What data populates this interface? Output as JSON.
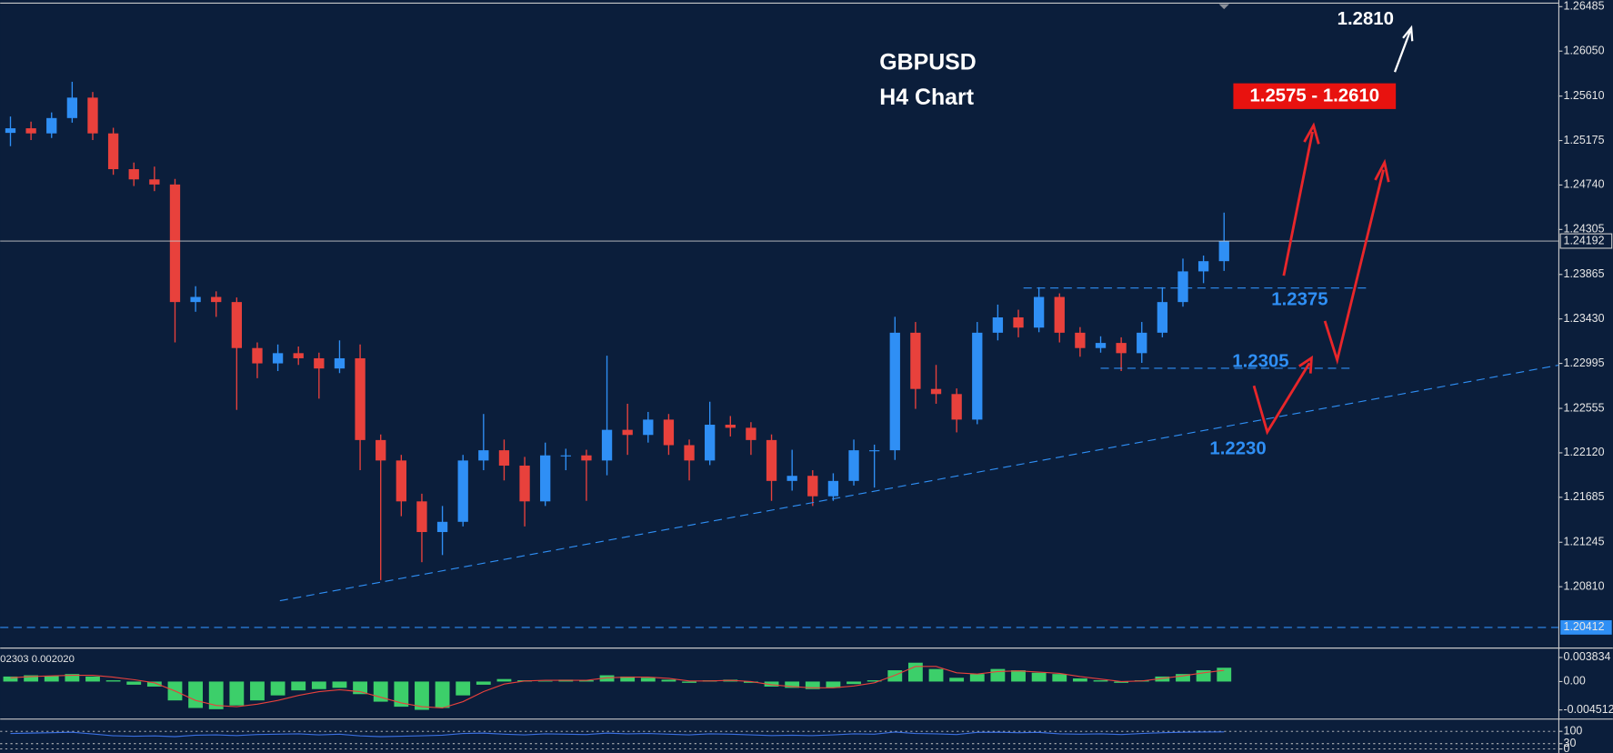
{
  "chart_data": [
    {
      "type": "candlestick",
      "title": "GBPUSD",
      "subtitle": "H4 Chart",
      "ohlc": [
        [
          1.2525,
          1.2541,
          1.2512,
          1.25295
        ],
        [
          1.25295,
          1.2536,
          1.2518,
          1.25245
        ],
        [
          1.25245,
          1.2545,
          1.252,
          1.25395
        ],
        [
          1.25395,
          1.2575,
          1.2535,
          1.25595
        ],
        [
          1.25595,
          1.2565,
          1.2518,
          1.25245
        ],
        [
          1.25245,
          1.253,
          1.2484,
          1.24895
        ],
        [
          1.24895,
          1.2496,
          1.2473,
          1.24795
        ],
        [
          1.24795,
          1.2492,
          1.2468,
          1.24745
        ],
        [
          1.24745,
          1.248,
          1.232,
          1.23595
        ],
        [
          1.23595,
          1.2375,
          1.235,
          1.23645
        ],
        [
          1.23645,
          1.237,
          1.2345,
          1.23595
        ],
        [
          1.23595,
          1.2364,
          1.2254,
          1.23145
        ],
        [
          1.23145,
          1.232,
          1.2285,
          1.22995
        ],
        [
          1.22995,
          1.2318,
          1.2292,
          1.23095
        ],
        [
          1.23095,
          1.2316,
          1.2298,
          1.23045
        ],
        [
          1.23045,
          1.231,
          1.2265,
          1.22945
        ],
        [
          1.22945,
          1.2322,
          1.229,
          1.23045
        ],
        [
          1.23045,
          1.2318,
          1.2195,
          1.22245
        ],
        [
          1.22245,
          1.223,
          1.20875,
          1.22045
        ],
        [
          1.22045,
          1.221,
          1.215,
          1.21645
        ],
        [
          1.21645,
          1.2172,
          1.2105,
          1.21345
        ],
        [
          1.21345,
          1.216,
          1.2112,
          1.21445
        ],
        [
          1.21445,
          1.221,
          1.214,
          1.22045
        ],
        [
          1.22045,
          1.225,
          1.2195,
          1.22145
        ],
        [
          1.22145,
          1.2225,
          1.2185,
          1.21995
        ],
        [
          1.21995,
          1.2208,
          1.214,
          1.21645
        ],
        [
          1.21645,
          1.2222,
          1.216,
          1.22095
        ],
        [
          1.22095,
          1.2216,
          1.2195,
          1.22095
        ],
        [
          1.22095,
          1.2215,
          1.2165,
          1.22045
        ],
        [
          1.22045,
          1.2307,
          1.219,
          1.22345
        ],
        [
          1.22345,
          1.226,
          1.221,
          1.22295
        ],
        [
          1.22295,
          1.2252,
          1.2222,
          1.22445
        ],
        [
          1.22445,
          1.225,
          1.221,
          1.22195
        ],
        [
          1.22195,
          1.2225,
          1.2185,
          1.22045
        ],
        [
          1.22045,
          1.2262,
          1.22,
          1.22395
        ],
        [
          1.22395,
          1.2248,
          1.2228,
          1.22365
        ],
        [
          1.22365,
          1.2242,
          1.221,
          1.22245
        ],
        [
          1.22245,
          1.223,
          1.2165,
          1.21845
        ],
        [
          1.21845,
          1.2215,
          1.2175,
          1.21895
        ],
        [
          1.21895,
          1.2195,
          1.216,
          1.21695
        ],
        [
          1.21695,
          1.2192,
          1.2165,
          1.21845
        ],
        [
          1.21845,
          1.2225,
          1.218,
          1.22145
        ],
        [
          1.22145,
          1.222,
          1.2178,
          1.22145
        ],
        [
          1.22145,
          1.2345,
          1.2205,
          1.23295
        ],
        [
          1.23295,
          1.234,
          1.2255,
          1.22745
        ],
        [
          1.22745,
          1.2298,
          1.226,
          1.22695
        ],
        [
          1.22695,
          1.2275,
          1.2232,
          1.22445
        ],
        [
          1.22445,
          1.234,
          1.224,
          1.23295
        ],
        [
          1.23295,
          1.2357,
          1.2322,
          1.23445
        ],
        [
          1.23445,
          1.2352,
          1.2325,
          1.23345
        ],
        [
          1.23345,
          1.2374,
          1.233,
          1.23645
        ],
        [
          1.23645,
          1.2368,
          1.232,
          1.23295
        ],
        [
          1.23295,
          1.2335,
          1.2306,
          1.23145
        ],
        [
          1.23145,
          1.2326,
          1.231,
          1.23195
        ],
        [
          1.23195,
          1.2325,
          1.2292,
          1.23095
        ],
        [
          1.23095,
          1.234,
          1.23,
          1.23295
        ],
        [
          1.23295,
          1.2374,
          1.2325,
          1.23595
        ],
        [
          1.23595,
          1.2402,
          1.2355,
          1.23895
        ],
        [
          1.23895,
          1.2405,
          1.2378,
          1.23995
        ],
        [
          1.23995,
          1.2447,
          1.239,
          1.24192
        ]
      ],
      "up_color": "#2f8ff5",
      "down_color": "#e8413c",
      "ylim": [
        1.2023,
        1.2655
      ],
      "yticks": [
        1.26485,
        {
          "value": 1.2605,
          "label": "1.26050"
        },
        {
          "value": 1.2561,
          "label": "1.25610"
        },
        1.25175,
        {
          "value": 1.2474,
          "label": "1.24740"
        },
        1.24305,
        1.23865,
        {
          "value": 1.2343,
          "label": "1.23430"
        },
        1.22995,
        1.22555,
        {
          "value": 1.2212,
          "label": "1.22120"
        },
        1.21685,
        1.21245,
        {
          "value": 1.2081,
          "label": "1.20810"
        }
      ],
      "last_price": 1.24192,
      "support_line": 1.20412,
      "target": "1.2810",
      "target_zone": "1.2575 - 1.2610",
      "levels": [
        "1.2375",
        "1.2305",
        "1.2230"
      ]
    },
    {
      "type": "macd",
      "label": "02303 0.002020",
      "color": "#3ccf6a",
      "signal_color": "#e8413c",
      "histogram": [
        0.0008,
        0.001,
        0.0009,
        0.0012,
        0.0008,
        0.0002,
        -0.0005,
        -0.0008,
        -0.003,
        -0.0042,
        -0.0044,
        -0.0038,
        -0.003,
        -0.0022,
        -0.0014,
        -0.0012,
        -0.001,
        -0.002,
        -0.0032,
        -0.004,
        -0.0045,
        -0.0042,
        -0.0022,
        -0.0005,
        0.0004,
        0.0002,
        0.0001,
        0.0003,
        0.0002,
        0.001,
        0.0008,
        0.0006,
        0.0003,
        -0.0002,
        0.0002,
        0.0003,
        -0.0002,
        -0.0008,
        -0.001,
        -0.0012,
        -0.001,
        -0.0004,
        0.0002,
        0.0018,
        0.003,
        0.002,
        0.0006,
        0.0012,
        0.002,
        0.0018,
        0.0014,
        0.0012,
        0.0005,
        0.0002,
        -0.0002,
        0.0002,
        0.0008,
        0.0012,
        0.0018,
        0.0022
      ],
      "signal": [
        0.0006,
        0.0008,
        0.0009,
        0.001,
        0.001,
        0.0007,
        0.0003,
        -0.0002,
        -0.0015,
        -0.003,
        -0.0038,
        -0.004,
        -0.0036,
        -0.003,
        -0.0022,
        -0.0016,
        -0.0013,
        -0.0016,
        -0.0025,
        -0.0034,
        -0.004,
        -0.0042,
        -0.0032,
        -0.0016,
        -0.0004,
        0.0001,
        0.0002,
        0.0002,
        0.0002,
        0.0006,
        0.0007,
        0.0007,
        0.0005,
        0.0001,
        0.0001,
        0.0002,
        0,
        -0.0005,
        -0.0008,
        -0.001,
        -0.001,
        -0.0007,
        -0.0002,
        0.001,
        0.0024,
        0.0024,
        0.0014,
        0.0012,
        0.0016,
        0.0017,
        0.0015,
        0.0013,
        0.0008,
        0.0004,
        0,
        0.0001,
        0.0005,
        0.0009,
        0.0014,
        0.0018
      ],
      "ylim": [
        -0.0058,
        0.005
      ],
      "yticks": [
        0.003834,
        {
          "value": 0,
          "label": "0.00"
        },
        -0.004512
      ]
    },
    {
      "type": "line",
      "color": "#3a6fe0",
      "values": [
        88,
        90,
        92,
        95,
        85,
        75,
        72,
        74,
        70,
        78,
        80,
        76,
        82,
        84,
        86,
        80,
        84,
        74,
        70,
        72,
        75,
        78,
        88,
        90,
        84,
        80,
        86,
        84,
        82,
        90,
        86,
        88,
        84,
        80,
        86,
        84,
        80,
        76,
        78,
        76,
        80,
        86,
        84,
        96,
        88,
        86,
        82,
        94,
        95,
        92,
        94,
        86,
        84,
        86,
        82,
        88,
        92,
        95,
        96,
        97
      ],
      "ylim": [
        -23,
        164
      ],
      "yticks": [
        100,
        30,
        0
      ]
    }
  ]
}
